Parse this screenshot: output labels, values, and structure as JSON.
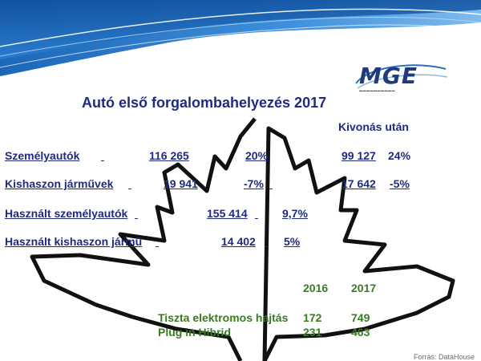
{
  "slide": {
    "title": "Autó első forgalombahelyezés 2017",
    "kivonas_header": "Kivonás után",
    "logo_text": "MGE",
    "rows": [
      {
        "label": "Személyautók",
        "value": "116 265",
        "change": "20%",
        "after_value": "99 127",
        "after_change": "24%"
      },
      {
        "label": "Kishaszon járművek",
        "value": "19 941",
        "change": "-7%",
        "after_value": "17 642",
        "after_change": "-5%"
      },
      {
        "label": "Használt személyautók",
        "value": "155 414",
        "change": "9,7%"
      },
      {
        "label": "Használt kishaszon jármű",
        "value": "14 402",
        "change": "5%"
      }
    ],
    "ev_table": {
      "year1": "2016",
      "year2": "2017",
      "rows": [
        {
          "label": "Tiszta elektromos hajtás",
          "v2016": "172",
          "v2017": "749"
        },
        {
          "label": "Plug in Hibrid",
          "v2016": "231",
          "v2017": "463"
        }
      ]
    },
    "source": "Forrás: DataHouse"
  }
}
